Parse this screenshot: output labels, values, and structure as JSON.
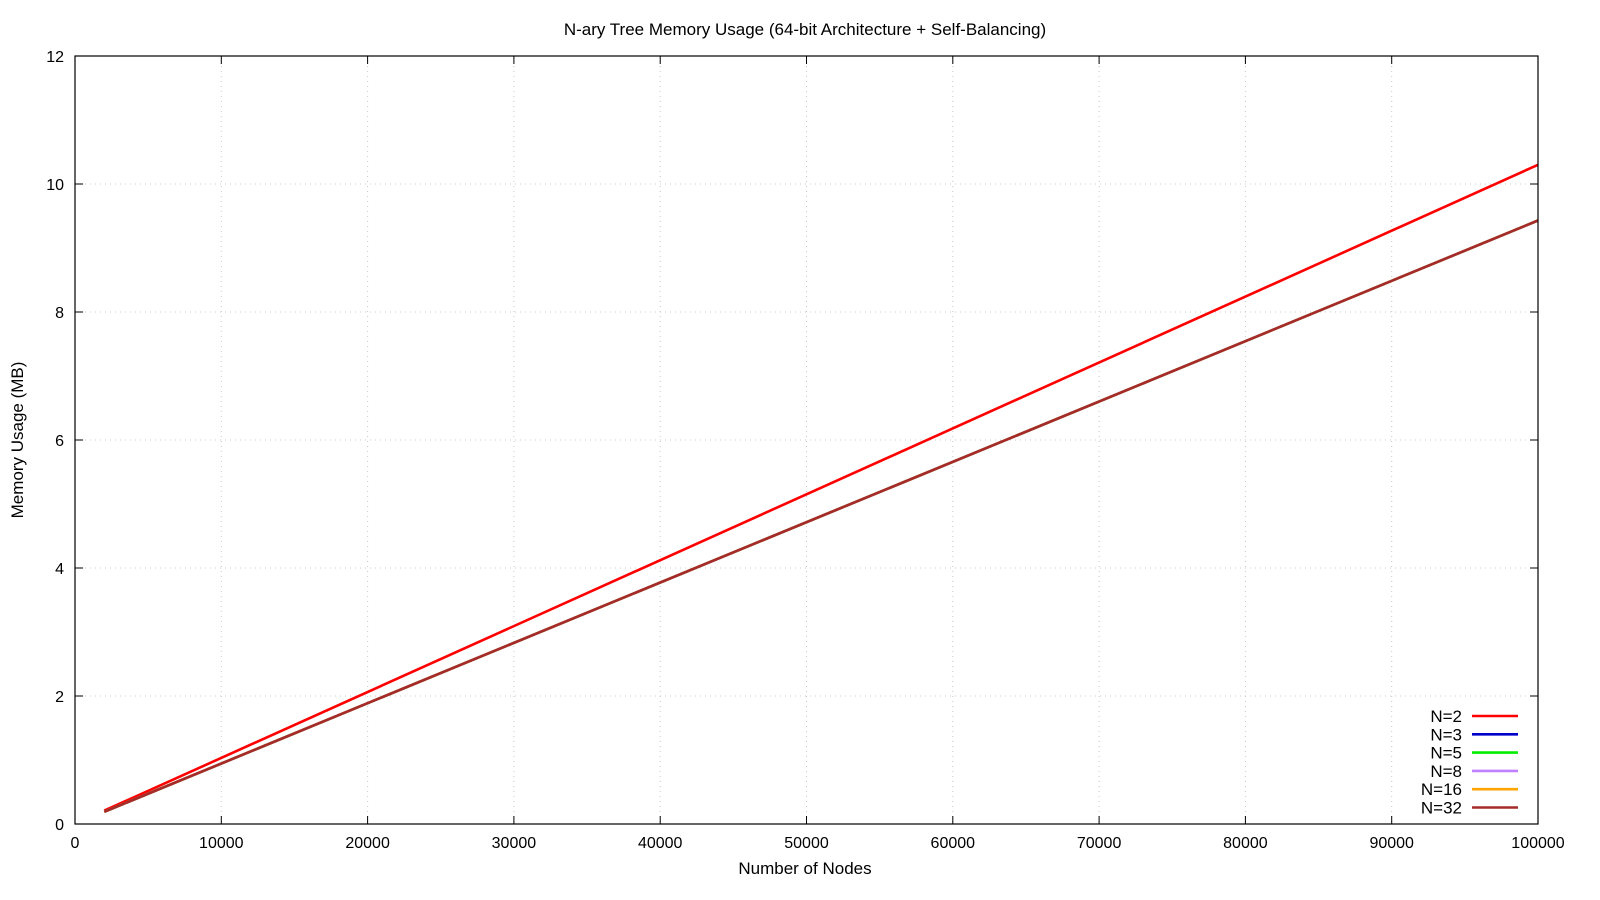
{
  "chart_data": {
    "type": "line",
    "title": "N-ary Tree Memory Usage (64-bit Architecture + Self-Balancing)",
    "xlabel": "Number of Nodes",
    "ylabel": "Memory Usage (MB)",
    "xlim": [
      0,
      100000
    ],
    "ylim": [
      0,
      12
    ],
    "xticks": [
      0,
      10000,
      20000,
      30000,
      40000,
      50000,
      60000,
      70000,
      80000,
      90000,
      100000
    ],
    "xtick_labels": [
      "0",
      "10000",
      "20000",
      "30000",
      "40000",
      "50000",
      "60000",
      "70000",
      "80000",
      "90000",
      "100000"
    ],
    "yticks": [
      0,
      2,
      4,
      6,
      8,
      10,
      12
    ],
    "ytick_labels": [
      "0",
      "2",
      "4",
      "6",
      "8",
      "10",
      "12"
    ],
    "grid": true,
    "legend_position": "bottom-right",
    "series": [
      {
        "name": "N=2",
        "color": "#ff0000",
        "x": [
          2000,
          100000
        ],
        "y": [
          0.21,
          10.3
        ]
      },
      {
        "name": "N=3",
        "color": "#0000cc",
        "x": [
          2000,
          100000
        ],
        "y": [
          0.19,
          9.43
        ]
      },
      {
        "name": "N=5",
        "color": "#00ee00",
        "x": [
          2000,
          100000
        ],
        "y": [
          0.19,
          9.43
        ]
      },
      {
        "name": "N=8",
        "color": "#c080ff",
        "x": [
          2000,
          100000
        ],
        "y": [
          0.19,
          9.43
        ]
      },
      {
        "name": "N=16",
        "color": "#ffa500",
        "x": [
          2000,
          100000
        ],
        "y": [
          0.19,
          9.43
        ]
      },
      {
        "name": "N=32",
        "color": "#a52a2a",
        "x": [
          2000,
          100000
        ],
        "y": [
          0.19,
          9.43
        ]
      }
    ]
  }
}
